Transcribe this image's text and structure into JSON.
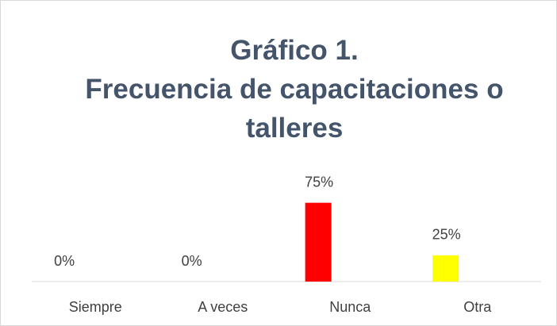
{
  "chart_data": {
    "type": "bar",
    "title": "Gráfico 1.",
    "subtitle": "Frecuencia de capacitaciones o talleres",
    "categories": [
      "Siempre",
      "A veces",
      "Nunca",
      "Otra"
    ],
    "values": [
      0,
      0,
      75,
      25
    ],
    "value_labels": [
      "0%",
      "0%",
      "75%",
      "25%"
    ],
    "colors": [
      "#ff0000",
      "#ffff00",
      "#ff0000",
      "#ffff00"
    ],
    "ylim": [
      0,
      80
    ]
  }
}
